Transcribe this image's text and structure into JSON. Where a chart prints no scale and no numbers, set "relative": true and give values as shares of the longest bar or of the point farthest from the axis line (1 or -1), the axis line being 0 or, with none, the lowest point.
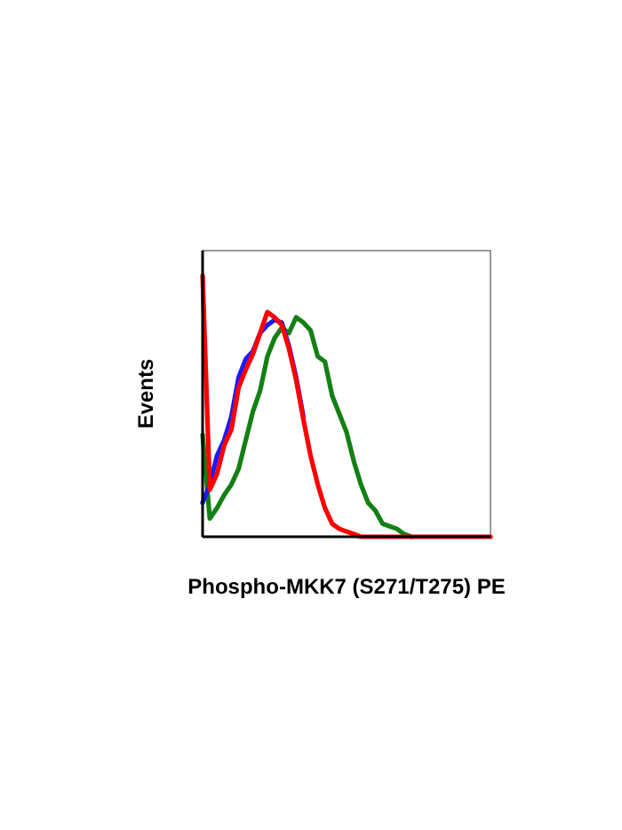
{
  "chart_data": {
    "type": "line",
    "relative": true,
    "xlabel": "Phospho-MKK7 (S271/T275) PE",
    "ylabel": "Events",
    "categories": [
      null,
      null,
      null,
      null,
      null,
      null,
      null,
      null,
      null,
      null,
      null,
      null,
      null,
      null,
      null,
      null,
      null,
      null,
      null,
      null,
      null,
      null,
      null,
      null,
      null,
      null,
      null,
      null,
      null,
      null,
      null,
      null,
      null,
      null,
      null,
      null,
      null,
      null,
      null,
      null,
      null
    ],
    "series": [
      {
        "color": "#138013",
        "values": [
          0.39,
          0.07,
          0.11,
          0.16,
          0.2,
          0.26,
          0.37,
          0.48,
          0.56,
          0.69,
          0.76,
          0.8,
          0.78,
          0.84,
          0.82,
          0.79,
          0.69,
          0.67,
          0.54,
          0.47,
          0.4,
          0.29,
          0.2,
          0.13,
          0.1,
          0.05,
          0.04,
          0.03,
          0.01,
          0,
          null,
          null,
          null,
          null,
          null,
          null,
          null,
          null,
          null,
          null,
          null
        ]
      },
      {
        "color": "#1a1aff",
        "values": [
          0.13,
          0.2,
          0.31,
          0.37,
          0.46,
          0.61,
          0.68,
          0.71,
          0.78,
          0.81,
          0.83,
          0.82,
          0.73,
          0.61,
          0.46,
          null,
          null,
          null,
          null,
          null,
          null,
          null,
          null,
          null,
          null,
          null,
          null,
          null,
          null,
          null,
          null,
          null,
          null,
          null,
          null,
          null,
          null,
          null,
          null,
          null,
          null
        ]
      },
      {
        "color": "#ff0000",
        "values": [
          1,
          0.18,
          0.24,
          0.35,
          0.41,
          0.57,
          0.64,
          0.7,
          0.78,
          0.86,
          0.84,
          0.81,
          0.72,
          0.6,
          0.45,
          0.31,
          0.2,
          0.11,
          0.05,
          0.03,
          0.02,
          0.01,
          0,
          0,
          0,
          0,
          0,
          0,
          0,
          0,
          0,
          0,
          0,
          0,
          0,
          0,
          0,
          0,
          0,
          0,
          0
        ]
      }
    ]
  }
}
